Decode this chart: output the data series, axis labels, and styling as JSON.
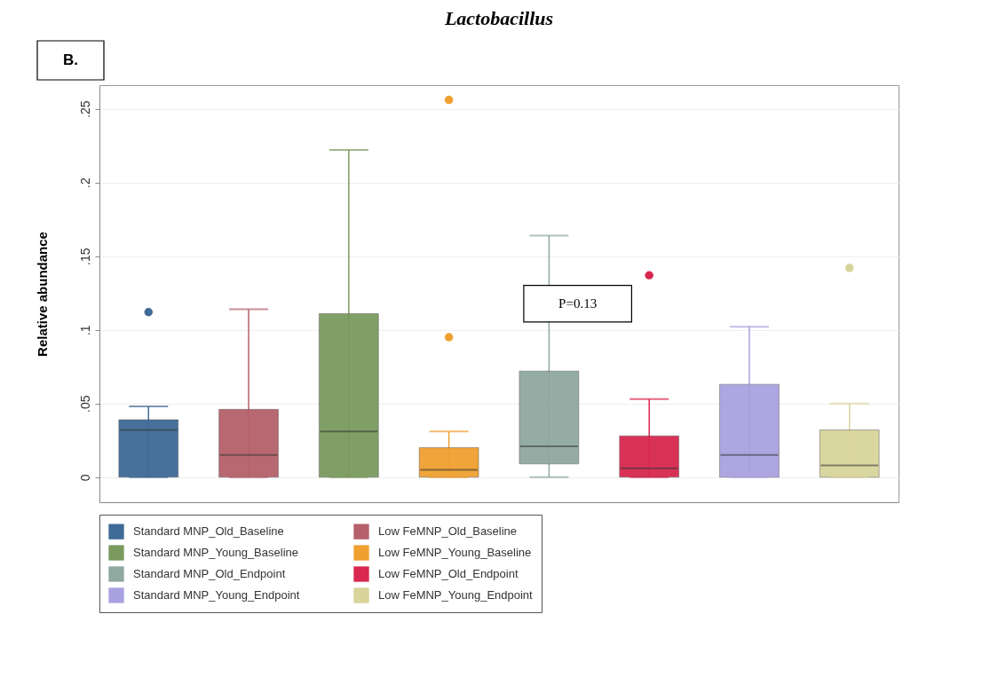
{
  "chart_data": {
    "type": "box",
    "title": "Lactobacillus",
    "ylabel": "Relative abundance",
    "categories": [
      null
    ],
    "ylim": [
      -0.017,
      0.266
    ],
    "yticks": [
      0,
      {
        "value": 0.05,
        "label": ".05"
      },
      {
        "value": 0.1,
        "label": ".1"
      },
      {
        "value": 0.15,
        "label": ".15"
      },
      {
        "value": 0.2,
        "label": ".2"
      },
      {
        "value": 0.25,
        "label": ".25"
      }
    ],
    "grid": "y",
    "legend": "bottom",
    "annotations": [
      "B.",
      "P=0.13"
    ],
    "series": [
      {
        "name": "Standard MNP_Old_Baseline",
        "color": "#3e6a96",
        "boxes": [
          {
            "low": 0,
            "q1": 0,
            "median": 0.032,
            "q3": 0.039,
            "high": 0.048,
            "outliers": [
              0.112
            ]
          }
        ]
      },
      {
        "name": "Low FeMNP_Old_Baseline",
        "color": "#b5606a",
        "boxes": [
          {
            "low": 0,
            "q1": 0,
            "median": 0.015,
            "q3": 0.046,
            "high": 0.114
          }
        ]
      },
      {
        "name": "Standard MNP_Young_Baseline",
        "color": "#7a9a5e",
        "boxes": [
          {
            "low": 0,
            "q1": 0,
            "median": 0.031,
            "q3": 0.111,
            "high": 0.222
          }
        ]
      },
      {
        "name": "Low FeMNP_Young_Baseline",
        "color": "#f0a030",
        "boxes": [
          {
            "low": 0,
            "q1": 0,
            "median": 0.005,
            "q3": 0.02,
            "high": 0.031,
            "outliers": [
              0.256,
              0.095
            ]
          }
        ]
      },
      {
        "name": "Standard MNP_Old_Endpoint",
        "color": "#8fa8a0",
        "boxes": [
          {
            "low": 0,
            "q1": 0.009,
            "median": 0.021,
            "q3": 0.072,
            "high": 0.164
          }
        ]
      },
      {
        "name": "Low FeMNP_Old_Endpoint",
        "color": "#d8284f",
        "boxes": [
          {
            "low": 0,
            "q1": 0,
            "median": 0.006,
            "q3": 0.028,
            "high": 0.053,
            "outliers": [
              0.137
            ]
          }
        ]
      },
      {
        "name": "Standard MNP_Young_Endpoint",
        "color": "#a9a2e0",
        "boxes": [
          {
            "low": 0,
            "q1": 0,
            "median": 0.015,
            "q3": 0.063,
            "high": 0.102
          }
        ]
      },
      {
        "name": "Low FeMNP_Young_Endpoint",
        "color": "#d8d49a",
        "boxes": [
          {
            "low": 0,
            "q1": 0,
            "median": 0.008,
            "q3": 0.032,
            "high": 0.05,
            "outliers": [
              0.142
            ]
          }
        ]
      }
    ]
  }
}
